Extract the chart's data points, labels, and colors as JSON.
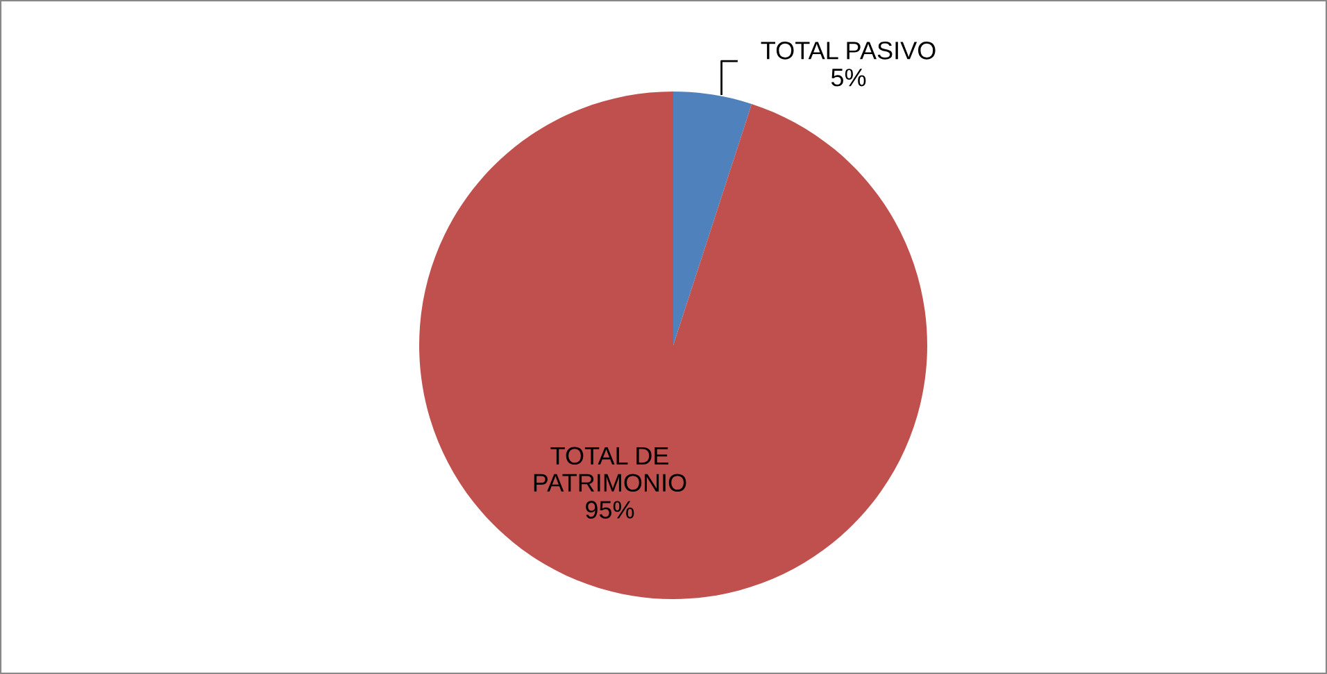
{
  "chart_data": {
    "type": "pie",
    "categories": [
      "TOTAL PASIVO",
      "TOTAL DE PATRIMONIO"
    ],
    "values": [
      5,
      95
    ],
    "colors": [
      "#4f81bd",
      "#c0504d"
    ],
    "value_labels": [
      "5%",
      "95%"
    ],
    "legend": false
  }
}
